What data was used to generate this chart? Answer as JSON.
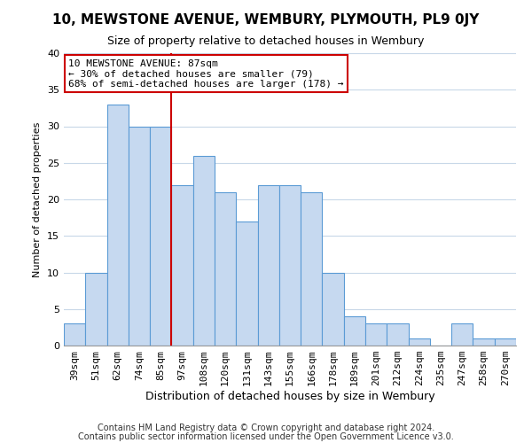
{
  "title": "10, MEWSTONE AVENUE, WEMBURY, PLYMOUTH, PL9 0JY",
  "subtitle": "Size of property relative to detached houses in Wembury",
  "xlabel": "Distribution of detached houses by size in Wembury",
  "ylabel": "Number of detached properties",
  "footer1": "Contains HM Land Registry data © Crown copyright and database right 2024.",
  "footer2": "Contains public sector information licensed under the Open Government Licence v3.0.",
  "bar_labels": [
    "39sqm",
    "51sqm",
    "62sqm",
    "74sqm",
    "85sqm",
    "97sqm",
    "108sqm",
    "120sqm",
    "131sqm",
    "143sqm",
    "155sqm",
    "166sqm",
    "178sqm",
    "189sqm",
    "201sqm",
    "212sqm",
    "224sqm",
    "235sqm",
    "247sqm",
    "258sqm",
    "270sqm"
  ],
  "bar_values": [
    3,
    10,
    33,
    30,
    30,
    22,
    26,
    21,
    17,
    22,
    22,
    21,
    10,
    4,
    3,
    3,
    1,
    0,
    3,
    1,
    1
  ],
  "bar_color": "#c6d9f0",
  "bar_edge_color": "#5b9bd5",
  "annotation_box_line1": "10 MEWSTONE AVENUE: 87sqm",
  "annotation_box_line2": "← 30% of detached houses are smaller (79)",
  "annotation_box_line3": "68% of semi-detached houses are larger (178) →",
  "annotation_box_color": "#ffffff",
  "annotation_box_edge_color": "#cc0000",
  "redline_x_label": "85sqm",
  "redline_color": "#cc0000",
  "ylim": [
    0,
    40
  ],
  "yticks": [
    0,
    5,
    10,
    15,
    20,
    25,
    30,
    35,
    40
  ],
  "grid_color": "#c8d8e8",
  "background_color": "#ffffff",
  "title_fontsize": 11,
  "subtitle_fontsize": 9,
  "ylabel_fontsize": 8,
  "xlabel_fontsize": 9,
  "tick_fontsize": 8,
  "ann_fontsize": 8,
  "footer_fontsize": 7
}
